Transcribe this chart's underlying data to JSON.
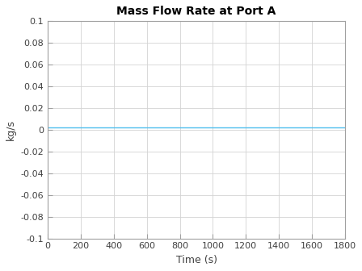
{
  "title": "Mass Flow Rate at Port A",
  "xlabel": "Time (s)",
  "ylabel": "kg/s",
  "xlim": [
    0,
    1800
  ],
  "ylim": [
    -0.1,
    0.1
  ],
  "xticks": [
    0,
    200,
    400,
    600,
    800,
    1000,
    1200,
    1400,
    1600,
    1800
  ],
  "yticks": [
    -0.1,
    -0.08,
    -0.06,
    -0.04,
    -0.02,
    0,
    0.02,
    0.04,
    0.06,
    0.08,
    0.1
  ],
  "ytick_labels": [
    "-0.1",
    "-0.08",
    "-0.06",
    "-0.04",
    "-0.02",
    "0",
    "0.02",
    "0.04",
    "0.06",
    "0.08",
    "0.1"
  ],
  "line_x": [
    0,
    1800
  ],
  "line_y": [
    0.002,
    0.002
  ],
  "line_color": "#4DBEEE",
  "line_width": 1.0,
  "grid_color": "#D3D3D3",
  "bg_color": "#FFFFFF",
  "fig_bg_color": "#FFFFFF",
  "spine_color": "#A0A0A0",
  "tick_color": "#A0A0A0",
  "label_color": "#404040",
  "title_fontsize": 10,
  "label_fontsize": 9,
  "tick_fontsize": 8
}
